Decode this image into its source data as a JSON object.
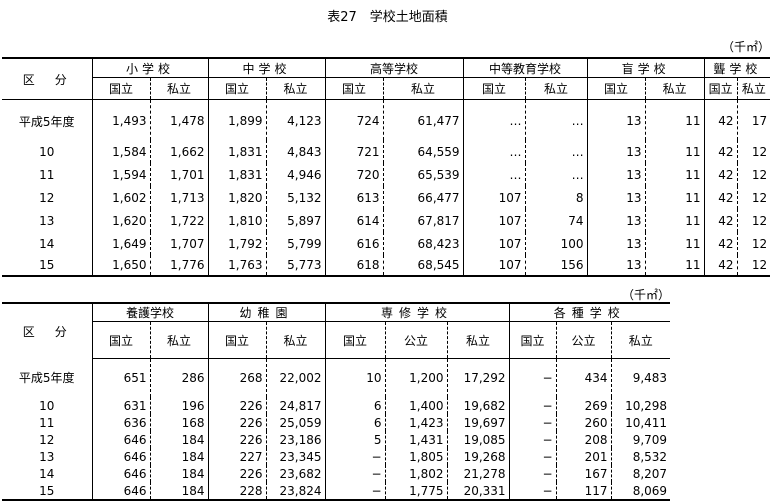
{
  "title": "表27　学校土地面積",
  "unit": "（千㎡）",
  "table1": {
    "division_header": "区　分",
    "groups": [
      "小学校",
      "中学校",
      "高等学校",
      "中等教育学校",
      "盲学校",
      "聾学校"
    ],
    "sub_headers": [
      "国立",
      "私立",
      "国立",
      "私立",
      "国立",
      "私立",
      "国立",
      "私立",
      "国立",
      "私立",
      "国立",
      "私立"
    ],
    "rows": [
      {
        "label": "平成5年度",
        "values": [
          "1,493",
          "1,478",
          "1,899",
          "4,123",
          "724",
          "61,477",
          "…",
          "…",
          "13",
          "11",
          "42",
          "17"
        ]
      },
      {
        "label": "10",
        "values": [
          "1,584",
          "1,662",
          "1,831",
          "4,843",
          "721",
          "64,559",
          "…",
          "…",
          "13",
          "11",
          "42",
          "12"
        ]
      },
      {
        "label": "11",
        "values": [
          "1,594",
          "1,701",
          "1,831",
          "4,946",
          "720",
          "65,539",
          "…",
          "…",
          "13",
          "11",
          "42",
          "12"
        ]
      },
      {
        "label": "12",
        "values": [
          "1,602",
          "1,713",
          "1,820",
          "5,132",
          "613",
          "66,477",
          "107",
          "8",
          "13",
          "11",
          "42",
          "12"
        ]
      },
      {
        "label": "13",
        "values": [
          "1,620",
          "1,722",
          "1,810",
          "5,897",
          "614",
          "67,817",
          "107",
          "74",
          "13",
          "11",
          "42",
          "12"
        ]
      },
      {
        "label": "14",
        "values": [
          "1,649",
          "1,707",
          "1,792",
          "5,799",
          "616",
          "68,423",
          "107",
          "100",
          "13",
          "11",
          "42",
          "12"
        ]
      },
      {
        "label": "15",
        "values": [
          "1,650",
          "1,776",
          "1,763",
          "5,773",
          "618",
          "68,545",
          "107",
          "156",
          "13",
          "11",
          "42",
          "12"
        ]
      }
    ]
  },
  "table2": {
    "division_header": "区　分",
    "groups": [
      "養護学校",
      "幼稚園",
      "専修学校",
      "各種学校"
    ],
    "sub_headers": [
      "国立",
      "私立",
      "国立",
      "私立",
      "国立",
      "公立",
      "私立",
      "国立",
      "公立",
      "私立"
    ],
    "rows": [
      {
        "label": "平成5年度",
        "values": [
          "651",
          "286",
          "268",
          "22,002",
          "10",
          "1,200",
          "17,292",
          "−",
          "434",
          "9,483"
        ]
      },
      {
        "label": "10",
        "values": [
          "631",
          "196",
          "226",
          "24,817",
          "6",
          "1,400",
          "19,682",
          "−",
          "269",
          "10,298"
        ]
      },
      {
        "label": "11",
        "values": [
          "636",
          "168",
          "226",
          "25,059",
          "6",
          "1,423",
          "19,697",
          "−",
          "260",
          "10,411"
        ]
      },
      {
        "label": "12",
        "values": [
          "646",
          "184",
          "226",
          "23,186",
          "5",
          "1,431",
          "19,085",
          "−",
          "208",
          "9,709"
        ]
      },
      {
        "label": "13",
        "values": [
          "646",
          "184",
          "227",
          "23,345",
          "−",
          "1,805",
          "19,268",
          "−",
          "201",
          "8,532"
        ]
      },
      {
        "label": "14",
        "values": [
          "646",
          "184",
          "226",
          "23,682",
          "−",
          "1,802",
          "21,278",
          "−",
          "167",
          "8,207"
        ]
      },
      {
        "label": "15",
        "values": [
          "646",
          "184",
          "228",
          "23,824",
          "−",
          "1,775",
          "20,331",
          "−",
          "117",
          "8,069"
        ]
      }
    ]
  }
}
